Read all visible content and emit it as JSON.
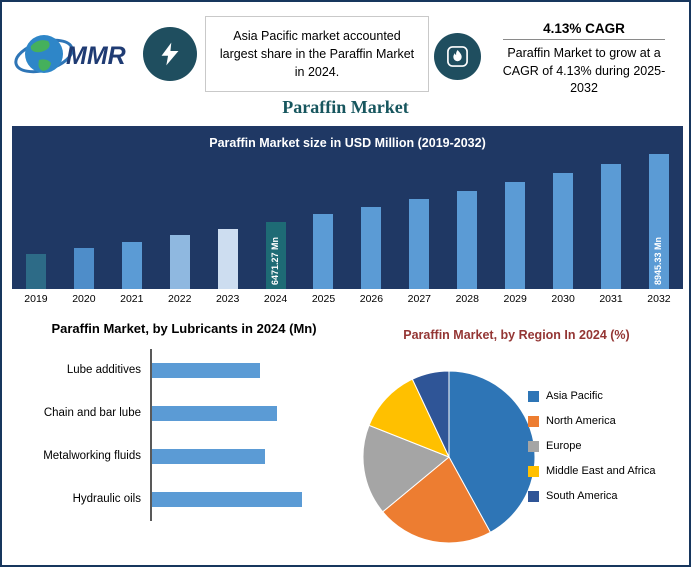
{
  "page_title": "Paraffin Market",
  "header": {
    "logo_text": "MMR",
    "asia_callout": "Asia Pacific market accounted largest share in the Paraffin Market in 2024.",
    "cagr_heading": "4.13% CAGR",
    "cagr_text": "Paraffin Market to grow at a CAGR of 4.13% during 2025-2032"
  },
  "colors": {
    "page_border": "#17365D",
    "chart_background": "#1F3864",
    "default_bar": "#5B9BD5",
    "highlight_bar_2024": "#1E6B75",
    "icon_circle": "#1F4E5F",
    "page_title_teal": "#17565E",
    "region_title_red": "#943634"
  },
  "chart_data": [
    {
      "type": "bar",
      "title": "Paraffin Market size in USD Million (2019-2032)",
      "ylabel": "USD Million",
      "categories": [
        "2019",
        "2020",
        "2021",
        "2022",
        "2023",
        "2024",
        "2025",
        "2026",
        "2027",
        "2028",
        "2029",
        "2030",
        "2031",
        "2032"
      ],
      "values": [
        5285.9,
        5504.2,
        5731.5,
        5968.2,
        6214.6,
        6471.27,
        6738.5,
        7016.9,
        7306.7,
        7608.5,
        7922.7,
        8250.0,
        8590.7,
        8945.33
      ],
      "data_labels": {
        "2024": "6471.27 Mn",
        "2032": "8945.33 Mn"
      },
      "bar_colors": [
        "#2D6B87",
        "#4E8DC9",
        "#5B9BD5",
        "#8FB8E0",
        "#CDDDF0",
        "#1E6B75",
        "#5B9BD5",
        "#5B9BD5",
        "#5B9BD5",
        "#5B9BD5",
        "#5B9BD5",
        "#5B9BD5",
        "#5B9BD5",
        "#5B9BD5"
      ],
      "grid": false,
      "legend": false
    },
    {
      "type": "bar",
      "orientation": "horizontal",
      "title": "Paraffin Market, by Lubricants in 2024 (Mn)",
      "categories": [
        "Lube additives",
        "Chain and bar lube",
        "Metalworking fluids",
        "Hydraulic oils"
      ],
      "values_relative": [
        0.72,
        0.83,
        0.75,
        1.0
      ],
      "bar_color": "#5B9BD5",
      "grid": false,
      "legend": false
    },
    {
      "type": "pie",
      "title": "Paraffin Market, by Region In 2024 (%)",
      "labels": [
        "Asia Pacific",
        "North America",
        "Europe",
        "Middle East and Africa",
        "South America"
      ],
      "values": [
        42,
        22,
        17,
        12,
        7
      ],
      "colors": [
        "#2E75B6",
        "#ED7D31",
        "#A5A5A5",
        "#FFC000",
        "#2F5597"
      ],
      "legend_position": "right",
      "start_angle_deg": 0
    }
  ]
}
